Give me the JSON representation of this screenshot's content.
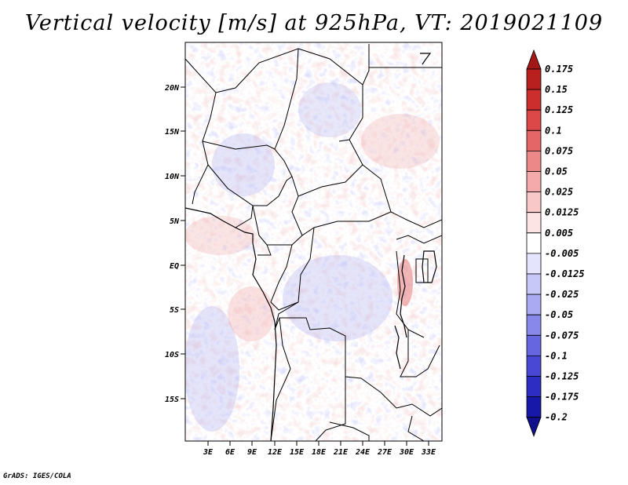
{
  "title": "Vertical velocity [m/s] at 925hPa, VT: 2019021109",
  "credit": "GrADS: IGES/COLA",
  "map": {
    "variable": "vertical velocity",
    "units": "m/s",
    "level": "925hPa",
    "valid_time": "2019021109",
    "lat_labels": [
      "20N",
      "15N",
      "10N",
      "5N",
      "EQ",
      "5S",
      "10S",
      "15S"
    ],
    "lon_labels": [
      "3E",
      "6E",
      "9E",
      "12E",
      "15E",
      "18E",
      "21E",
      "24E",
      "27E",
      "30E",
      "33E"
    ]
  },
  "colorbar": {
    "labels": [
      "0.175",
      "0.15",
      "0.125",
      "0.1",
      "0.075",
      "0.05",
      "0.025",
      "0.0125",
      "0.005",
      "-0.005",
      "-0.0125",
      "-0.025",
      "-0.05",
      "-0.075",
      "-0.1",
      "-0.125",
      "-0.175",
      "-0.2"
    ],
    "colors": [
      "#a01818",
      "#b81f1f",
      "#cc2d2d",
      "#dc4848",
      "#e46666",
      "#ec8888",
      "#f4aaaa",
      "#f8c8c8",
      "#fce4e4",
      "#ffffff",
      "#e4e4fc",
      "#c8c8f8",
      "#aaaaf2",
      "#8888ea",
      "#6666e0",
      "#4848d4",
      "#2d2dc4",
      "#1818a8",
      "#10108c"
    ]
  }
}
